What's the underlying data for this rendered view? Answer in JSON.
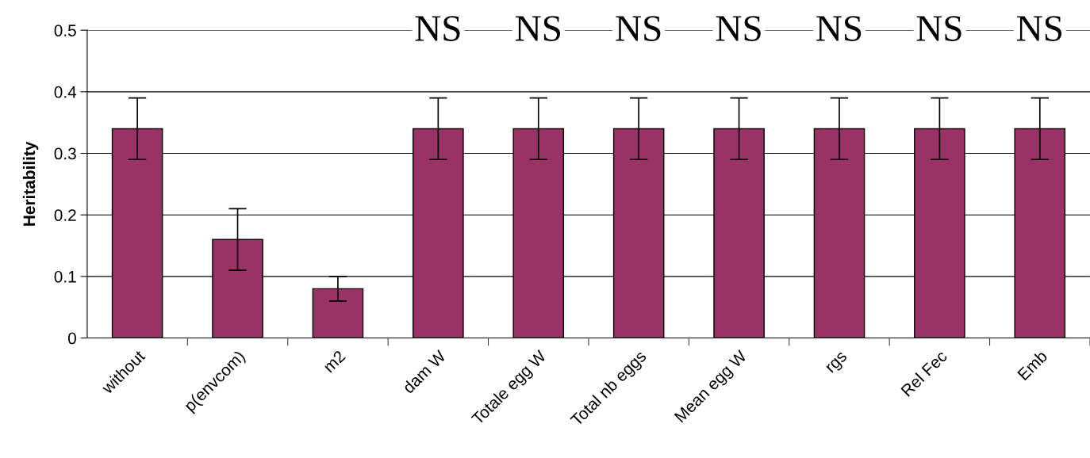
{
  "chart_data": {
    "type": "bar",
    "ylabel": "Heritability",
    "categories": [
      "without",
      "p(envcom)",
      "m2",
      "dam W",
      "Totale egg W",
      "Total nb eggs",
      "Mean egg W",
      "rgs",
      "Rel Fec",
      "Emb"
    ],
    "values": [
      0.34,
      0.16,
      0.08,
      0.34,
      0.34,
      0.34,
      0.34,
      0.34,
      0.34,
      0.34
    ],
    "errors": [
      0.05,
      0.05,
      0.02,
      0.05,
      0.05,
      0.05,
      0.05,
      0.05,
      0.05,
      0.05
    ],
    "color": "#993366",
    "ylim": [
      0,
      0.5
    ],
    "yticks": [
      0,
      0.1,
      0.2,
      0.3,
      0.4,
      0.5
    ],
    "grid": "y",
    "annotations": [
      "NS",
      "NS",
      "NS",
      "NS",
      "NS",
      "NS",
      "NS"
    ]
  }
}
